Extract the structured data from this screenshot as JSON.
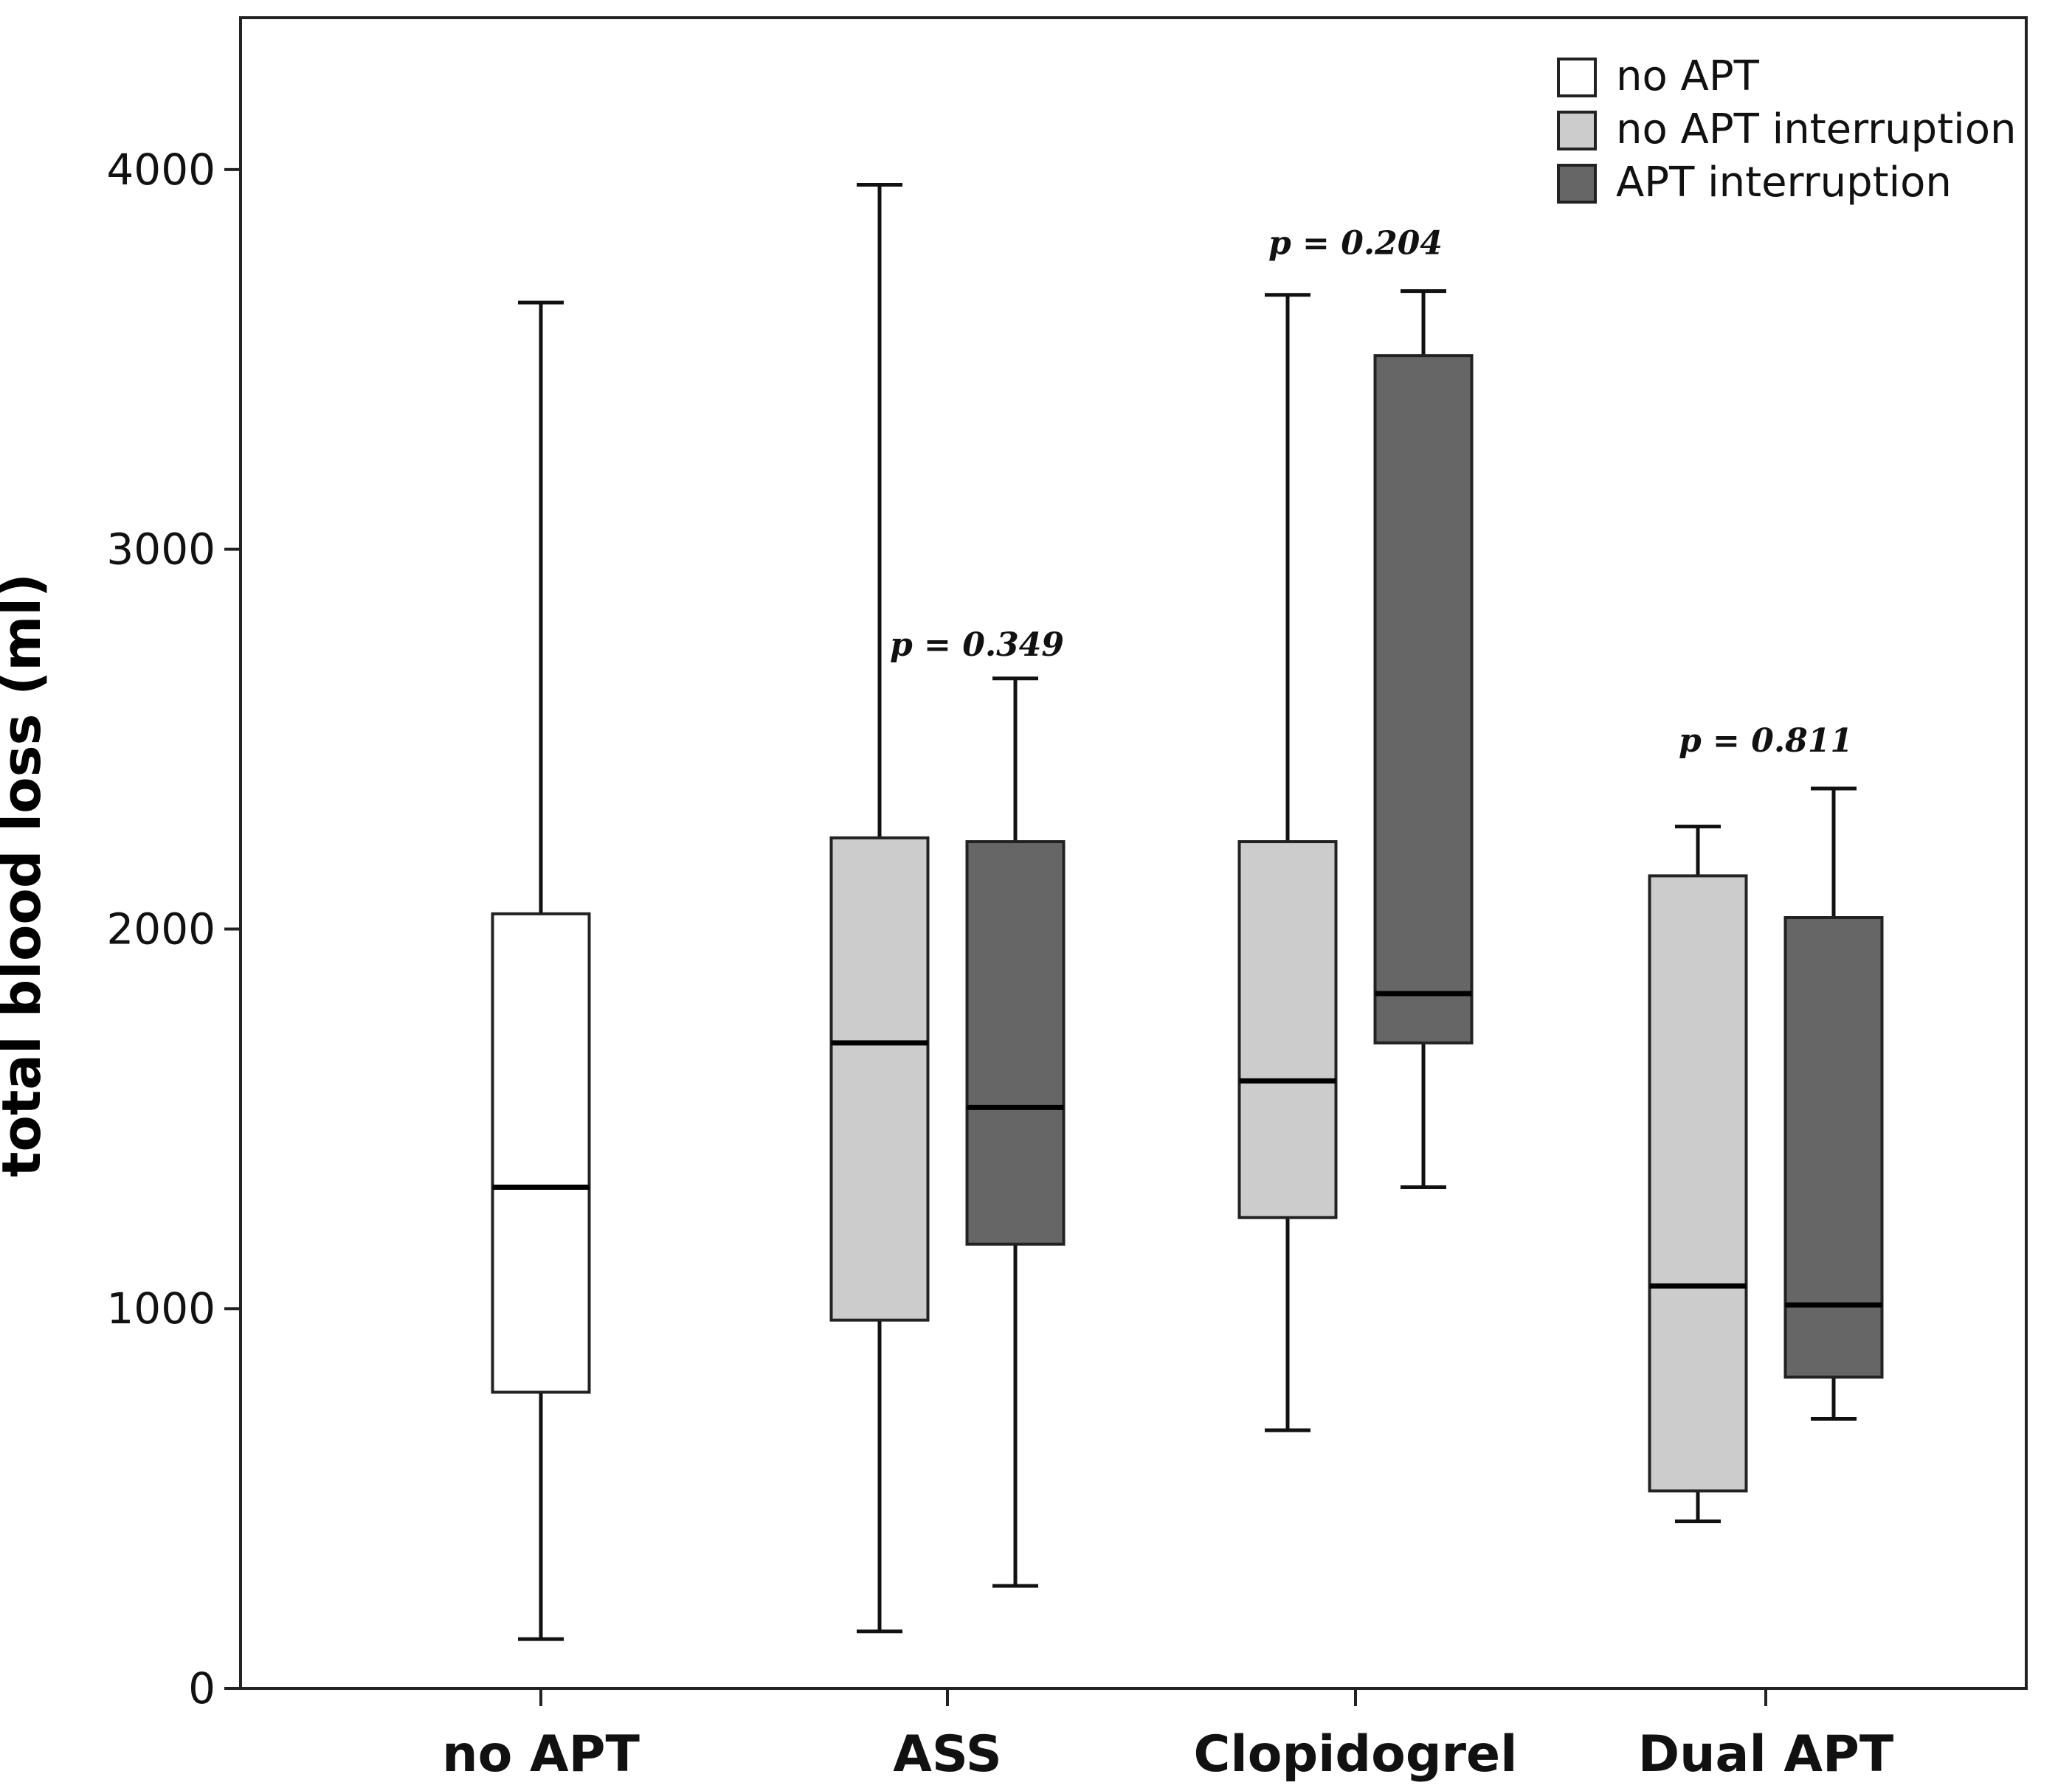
{
  "chart_data": {
    "type": "boxplot",
    "ylabel": "total blood loss (ml)",
    "ylim": [
      0,
      4400
    ],
    "yticks": [
      0,
      1000,
      2000,
      3000,
      4000
    ],
    "categories": [
      "no APT",
      "ASS",
      "Clopidogrel",
      "Dual APT"
    ],
    "legend": {
      "position": "top-right",
      "entries": [
        {
          "name": "no APT",
          "color": "#ffffff"
        },
        {
          "name": "no APT interruption",
          "color": "#cccccc"
        },
        {
          "name": "APT interruption",
          "color": "#666666"
        }
      ]
    },
    "series": [
      {
        "name": "no APT",
        "color": "#ffffff",
        "boxes": [
          {
            "category": "no APT",
            "min": 130,
            "q1": 780,
            "median": 1320,
            "q3": 2040,
            "max": 3650
          }
        ]
      },
      {
        "name": "no APT interruption",
        "color": "#cccccc",
        "boxes": [
          {
            "category": "ASS",
            "min": 150,
            "q1": 970,
            "median": 1700,
            "q3": 2240,
            "max": 3960
          },
          {
            "category": "Clopidogrel",
            "min": 680,
            "q1": 1240,
            "median": 1600,
            "q3": 2230,
            "max": 3670
          },
          {
            "category": "Dual APT",
            "min": 440,
            "q1": 520,
            "median": 1060,
            "q3": 2140,
            "max": 2270
          }
        ]
      },
      {
        "name": "APT interruption",
        "color": "#666666",
        "boxes": [
          {
            "category": "ASS",
            "min": 270,
            "q1": 1170,
            "median": 1530,
            "q3": 2230,
            "max": 2660
          },
          {
            "category": "Clopidogrel",
            "min": 1320,
            "q1": 1700,
            "median": 1830,
            "q3": 3510,
            "max": 3680
          },
          {
            "category": "Dual APT",
            "min": 710,
            "q1": 820,
            "median": 1010,
            "q3": 2030,
            "max": 2370
          }
        ]
      }
    ],
    "annotations": [
      {
        "category": "ASS",
        "text": "p = 0.349"
      },
      {
        "category": "Clopidogrel",
        "text": "p = 0.204"
      },
      {
        "category": "Dual APT",
        "text": "p = 0.811"
      }
    ]
  }
}
